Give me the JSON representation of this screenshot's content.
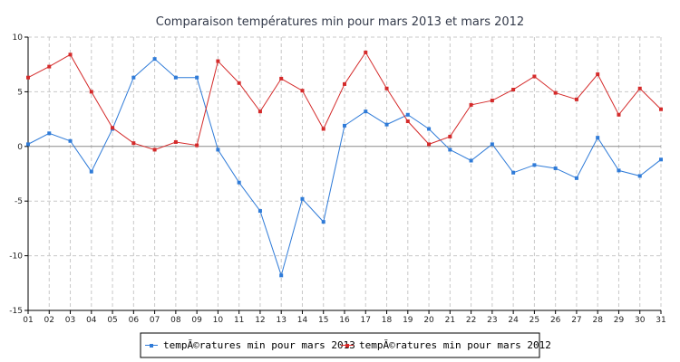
{
  "chart_data": {
    "type": "line",
    "title": "Comparaison températures min pour mars 2013 et mars 2012",
    "xlabel": "",
    "ylabel": "",
    "categories": [
      "01",
      "02",
      "03",
      "04",
      "05",
      "06",
      "07",
      "08",
      "09",
      "10",
      "11",
      "12",
      "13",
      "14",
      "15",
      "16",
      "17",
      "18",
      "19",
      "20",
      "21",
      "22",
      "23",
      "24",
      "25",
      "26",
      "27",
      "28",
      "29",
      "30",
      "31"
    ],
    "ylim": [
      -15,
      10
    ],
    "yticks": [
      10,
      5,
      0,
      -5,
      -10,
      -15
    ],
    "grid": true,
    "legend_position": "bottom-center",
    "series": [
      {
        "name": "tempĂ©ratures min pour mars 2013",
        "color": "#2f7bd8",
        "values": [
          0.2,
          1.2,
          0.5,
          -2.3,
          1.6,
          6.3,
          8.0,
          6.3,
          6.3,
          -0.3,
          -3.3,
          -5.9,
          -11.8,
          -4.8,
          -6.9,
          1.9,
          3.2,
          2.0,
          2.9,
          1.6,
          -0.3,
          -1.3,
          0.2,
          -2.4,
          -1.7,
          -2.0,
          -2.9,
          0.8,
          -2.2,
          -2.7,
          -1.2
        ]
      },
      {
        "name": "tempĂ©ratures min pour mars 2012",
        "color": "#d42a2a",
        "values": [
          6.3,
          7.3,
          8.4,
          5.0,
          1.7,
          0.3,
          -0.3,
          0.4,
          0.1,
          7.8,
          5.8,
          3.2,
          6.2,
          5.1,
          1.6,
          5.7,
          8.6,
          5.3,
          2.3,
          0.2,
          0.9,
          3.8,
          4.2,
          5.2,
          6.4,
          4.9,
          4.3,
          6.6,
          2.9,
          5.3,
          3.4
        ]
      }
    ]
  }
}
